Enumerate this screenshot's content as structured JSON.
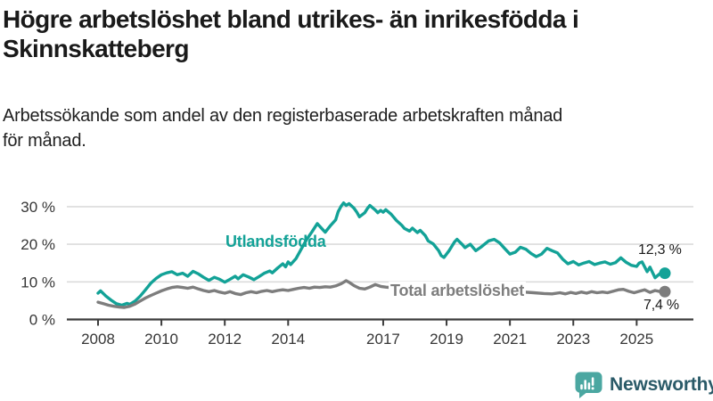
{
  "header": {
    "title_line1": "Högre arbetslöshet bland utrikes- än inrikesfödda i",
    "title_line2": "Skinnskatteberg",
    "subtitle_line1": "Arbetssökande som andel av den registerbaserade arbetskraften månad",
    "subtitle_line2": "för månad."
  },
  "chart_data": {
    "type": "line",
    "title": "",
    "xlabel": "",
    "ylabel": "",
    "x_unit": "year (fractional years = months)",
    "xlim": [
      2008,
      2025.75
    ],
    "ylim": [
      0,
      31
    ],
    "grid": "horizontal",
    "x_ticks": [
      "2008",
      "2010",
      "2012",
      "2014",
      "2017",
      "2019",
      "2021",
      "2023",
      "2025"
    ],
    "x_tick_values": [
      2008,
      2010,
      2012,
      2014,
      2017,
      2019,
      2021,
      2023,
      2025
    ],
    "y_ticks": [
      {
        "value": 0,
        "label": "0 %"
      },
      {
        "value": 10,
        "label": "10 %"
      },
      {
        "value": 20,
        "label": "20 %"
      },
      {
        "value": 30,
        "label": "30 %"
      }
    ],
    "series": [
      {
        "name": "Utlandsfödda",
        "color": "#13a297",
        "end_label": "12,3 %",
        "end_value": 12.3,
        "points": [
          [
            2008.0,
            7.0
          ],
          [
            2008.08,
            7.6
          ],
          [
            2008.25,
            6.2
          ],
          [
            2008.42,
            5.1
          ],
          [
            2008.58,
            4.2
          ],
          [
            2008.75,
            3.8
          ],
          [
            2008.92,
            4.3
          ],
          [
            2009.0,
            4.0
          ],
          [
            2009.17,
            4.9
          ],
          [
            2009.33,
            6.2
          ],
          [
            2009.5,
            7.9
          ],
          [
            2009.67,
            9.7
          ],
          [
            2009.83,
            10.9
          ],
          [
            2010.0,
            11.9
          ],
          [
            2010.17,
            12.4
          ],
          [
            2010.33,
            12.7
          ],
          [
            2010.5,
            11.9
          ],
          [
            2010.67,
            12.3
          ],
          [
            2010.83,
            11.5
          ],
          [
            2011.0,
            12.8
          ],
          [
            2011.17,
            12.1
          ],
          [
            2011.33,
            11.2
          ],
          [
            2011.5,
            10.4
          ],
          [
            2011.67,
            11.2
          ],
          [
            2011.83,
            10.7
          ],
          [
            2012.0,
            9.9
          ],
          [
            2012.17,
            10.7
          ],
          [
            2012.33,
            11.5
          ],
          [
            2012.42,
            10.8
          ],
          [
            2012.58,
            11.9
          ],
          [
            2012.75,
            11.3
          ],
          [
            2012.92,
            10.6
          ],
          [
            2013.08,
            11.4
          ],
          [
            2013.25,
            12.3
          ],
          [
            2013.42,
            12.9
          ],
          [
            2013.5,
            12.4
          ],
          [
            2013.67,
            13.7
          ],
          [
            2013.83,
            14.8
          ],
          [
            2013.92,
            14.0
          ],
          [
            2014.0,
            15.3
          ],
          [
            2014.08,
            14.6
          ],
          [
            2014.25,
            16.2
          ],
          [
            2014.42,
            18.8
          ],
          [
            2014.58,
            21.2
          ],
          [
            2014.75,
            23.3
          ],
          [
            2014.92,
            25.5
          ],
          [
            2015.08,
            24.0
          ],
          [
            2015.17,
            23.2
          ],
          [
            2015.33,
            24.9
          ],
          [
            2015.5,
            26.5
          ],
          [
            2015.58,
            28.7
          ],
          [
            2015.67,
            30.1
          ],
          [
            2015.75,
            31.0
          ],
          [
            2015.83,
            30.3
          ],
          [
            2015.92,
            30.8
          ],
          [
            2016.08,
            29.6
          ],
          [
            2016.17,
            28.5
          ],
          [
            2016.25,
            27.3
          ],
          [
            2016.42,
            28.4
          ],
          [
            2016.5,
            29.5
          ],
          [
            2016.58,
            30.3
          ],
          [
            2016.75,
            29.1
          ],
          [
            2016.83,
            28.4
          ],
          [
            2016.92,
            29.0
          ],
          [
            2017.0,
            28.5
          ],
          [
            2017.08,
            29.2
          ],
          [
            2017.25,
            28.0
          ],
          [
            2017.42,
            26.3
          ],
          [
            2017.58,
            25.1
          ],
          [
            2017.67,
            24.2
          ],
          [
            2017.83,
            23.5
          ],
          [
            2017.92,
            24.3
          ],
          [
            2018.08,
            23.1
          ],
          [
            2018.17,
            23.7
          ],
          [
            2018.33,
            22.3
          ],
          [
            2018.42,
            20.9
          ],
          [
            2018.58,
            20.1
          ],
          [
            2018.75,
            18.3
          ],
          [
            2018.83,
            17.0
          ],
          [
            2018.92,
            16.5
          ],
          [
            2019.08,
            18.3
          ],
          [
            2019.25,
            20.6
          ],
          [
            2019.33,
            21.3
          ],
          [
            2019.5,
            19.9
          ],
          [
            2019.58,
            19.1
          ],
          [
            2019.75,
            20.0
          ],
          [
            2019.92,
            18.3
          ],
          [
            2020.08,
            19.2
          ],
          [
            2020.33,
            20.9
          ],
          [
            2020.5,
            21.3
          ],
          [
            2020.67,
            20.4
          ],
          [
            2020.83,
            18.9
          ],
          [
            2021.0,
            17.4
          ],
          [
            2021.17,
            17.9
          ],
          [
            2021.33,
            19.2
          ],
          [
            2021.5,
            18.7
          ],
          [
            2021.67,
            17.5
          ],
          [
            2021.83,
            16.7
          ],
          [
            2022.0,
            17.4
          ],
          [
            2022.17,
            18.9
          ],
          [
            2022.33,
            18.3
          ],
          [
            2022.5,
            17.7
          ],
          [
            2022.67,
            16.0
          ],
          [
            2022.83,
            14.8
          ],
          [
            2023.0,
            15.4
          ],
          [
            2023.17,
            14.5
          ],
          [
            2023.33,
            15.0
          ],
          [
            2023.5,
            15.4
          ],
          [
            2023.67,
            14.6
          ],
          [
            2023.83,
            15.0
          ],
          [
            2024.0,
            15.3
          ],
          [
            2024.17,
            14.7
          ],
          [
            2024.33,
            15.1
          ],
          [
            2024.5,
            16.4
          ],
          [
            2024.67,
            15.2
          ],
          [
            2024.83,
            14.4
          ],
          [
            2025.0,
            14.1
          ],
          [
            2025.08,
            15.0
          ],
          [
            2025.17,
            15.3
          ],
          [
            2025.33,
            12.7
          ],
          [
            2025.42,
            13.9
          ],
          [
            2025.58,
            11.1
          ],
          [
            2025.75,
            12.3
          ]
        ]
      },
      {
        "name": "Total arbetslöshet",
        "color": "#7d7d7d",
        "end_label": "7,4 %",
        "end_value": 7.4,
        "points": [
          [
            2008.0,
            4.6
          ],
          [
            2008.17,
            4.2
          ],
          [
            2008.33,
            3.8
          ],
          [
            2008.5,
            3.5
          ],
          [
            2008.67,
            3.3
          ],
          [
            2008.83,
            3.2
          ],
          [
            2009.0,
            3.5
          ],
          [
            2009.17,
            4.1
          ],
          [
            2009.33,
            4.9
          ],
          [
            2009.5,
            5.7
          ],
          [
            2009.67,
            6.4
          ],
          [
            2009.83,
            7.0
          ],
          [
            2010.0,
            7.6
          ],
          [
            2010.17,
            8.1
          ],
          [
            2010.33,
            8.5
          ],
          [
            2010.5,
            8.7
          ],
          [
            2010.67,
            8.5
          ],
          [
            2010.83,
            8.3
          ],
          [
            2011.0,
            8.6
          ],
          [
            2011.17,
            8.1
          ],
          [
            2011.33,
            7.7
          ],
          [
            2011.5,
            7.4
          ],
          [
            2011.67,
            7.7
          ],
          [
            2011.83,
            7.3
          ],
          [
            2012.0,
            7.0
          ],
          [
            2012.17,
            7.4
          ],
          [
            2012.33,
            6.9
          ],
          [
            2012.5,
            6.6
          ],
          [
            2012.67,
            7.1
          ],
          [
            2012.83,
            7.4
          ],
          [
            2013.0,
            7.1
          ],
          [
            2013.17,
            7.5
          ],
          [
            2013.33,
            7.7
          ],
          [
            2013.5,
            7.4
          ],
          [
            2013.67,
            7.7
          ],
          [
            2013.83,
            7.9
          ],
          [
            2014.0,
            7.7
          ],
          [
            2014.17,
            8.0
          ],
          [
            2014.33,
            8.3
          ],
          [
            2014.5,
            8.5
          ],
          [
            2014.67,
            8.3
          ],
          [
            2014.83,
            8.6
          ],
          [
            2015.0,
            8.5
          ],
          [
            2015.17,
            8.7
          ],
          [
            2015.33,
            8.6
          ],
          [
            2015.5,
            8.9
          ],
          [
            2015.67,
            9.5
          ],
          [
            2015.83,
            10.3
          ],
          [
            2015.92,
            9.9
          ],
          [
            2016.08,
            9.0
          ],
          [
            2016.25,
            8.3
          ],
          [
            2016.42,
            8.1
          ],
          [
            2016.58,
            8.6
          ],
          [
            2016.75,
            9.3
          ],
          [
            2016.92,
            8.8
          ],
          [
            2017.08,
            8.6
          ],
          [
            2017.33,
            8.4
          ],
          [
            2017.58,
            8.2
          ],
          [
            2017.83,
            8.0
          ],
          [
            2018.08,
            7.8
          ],
          [
            2018.42,
            7.6
          ],
          [
            2018.75,
            7.4
          ],
          [
            2019.08,
            7.2
          ],
          [
            2019.42,
            7.1
          ],
          [
            2019.75,
            7.3
          ],
          [
            2020.08,
            7.6
          ],
          [
            2020.42,
            7.9
          ],
          [
            2020.75,
            7.7
          ],
          [
            2021.08,
            7.5
          ],
          [
            2021.42,
            7.3
          ],
          [
            2021.75,
            7.1
          ],
          [
            2022.08,
            6.9
          ],
          [
            2022.33,
            6.8
          ],
          [
            2022.58,
            7.1
          ],
          [
            2022.75,
            6.8
          ],
          [
            2022.92,
            7.2
          ],
          [
            2023.08,
            6.9
          ],
          [
            2023.25,
            7.3
          ],
          [
            2023.42,
            7.0
          ],
          [
            2023.58,
            7.4
          ],
          [
            2023.75,
            7.1
          ],
          [
            2023.92,
            7.3
          ],
          [
            2024.08,
            7.1
          ],
          [
            2024.25,
            7.5
          ],
          [
            2024.42,
            7.9
          ],
          [
            2024.58,
            8.0
          ],
          [
            2024.75,
            7.5
          ],
          [
            2024.92,
            7.1
          ],
          [
            2025.08,
            7.5
          ],
          [
            2025.25,
            7.9
          ],
          [
            2025.42,
            7.2
          ],
          [
            2025.58,
            7.7
          ],
          [
            2025.75,
            7.4
          ]
        ]
      }
    ],
    "legend_position": "inline-labels-on-chart"
  },
  "style": {
    "grid_color": "#dcdcdc",
    "axis_color": "#3c3c3c",
    "tick_text_color": "#363636",
    "end_label_color": "#1a1a1a",
    "background": "#ffffff"
  },
  "footer": {
    "brand": "Newsworthy",
    "logo_icon": "bar-chart-speech-bubble-icon",
    "icon_color": "#4ba7a1",
    "icon_bar_color": "#ffffff",
    "wordmark_color": "#2a5a68"
  }
}
